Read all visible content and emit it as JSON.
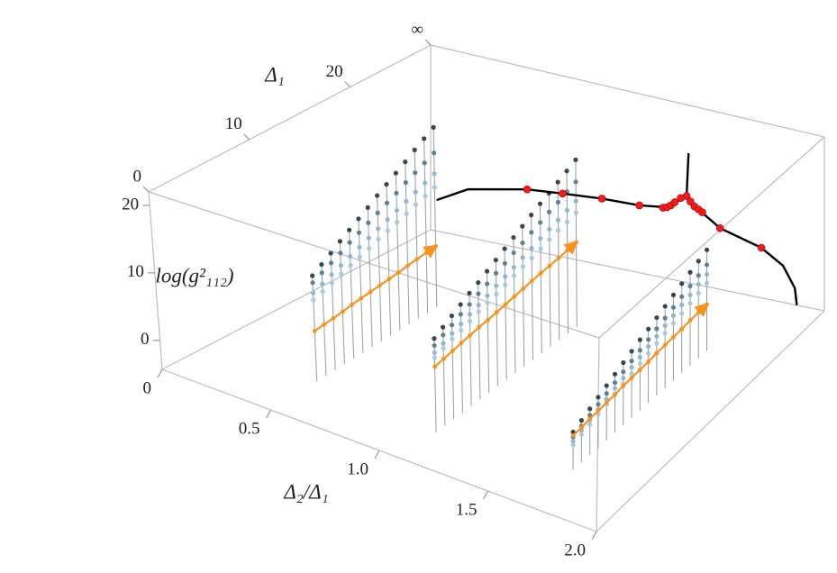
{
  "chart_data": {
    "type": "scatter3d",
    "xlabel": "Δ₂/Δ₁",
    "ylabel": "Δ₁",
    "zlabel": "log(g²₁₁₂)",
    "xlim": [
      0,
      2
    ],
    "ylim": [
      0,
      28
    ],
    "zlim": [
      -4.3,
      22
    ],
    "xticks": [
      0,
      0.5,
      {
        "value": 1,
        "label": "1.0"
      },
      1.5,
      {
        "value": 2,
        "label": "2.0"
      }
    ],
    "yticks": [
      0,
      10,
      20,
      {
        "value": 28,
        "label": "∞"
      }
    ],
    "zticks": [
      0,
      10,
      20
    ],
    "stem_color": "#9a9a9a",
    "groups": [
      {
        "x": 0.5,
        "delta1": [
          5,
          6,
          7,
          8,
          9,
          10,
          11,
          12,
          13,
          14,
          15,
          16,
          17,
          18
        ],
        "levels": [
          {
            "color": "#37474f",
            "values": [
              11,
              11.8,
              12.6,
              13.5,
              14.3,
              15.1,
              15.9,
              16.8,
              17.6,
              18.4,
              19.2,
              20.1,
              20.9,
              21.7
            ]
          },
          {
            "color": "#5f8196",
            "values": [
              10,
              10.6,
              11.2,
              11.8,
              12.5,
              13.1,
              13.7,
              14.3,
              14.9,
              15.5,
              16.2,
              16.8,
              17.4,
              18
            ]
          },
          {
            "color": "#8fb8d0",
            "values": [
              8.5,
              9,
              9.5,
              10,
              10.5,
              11,
              11.5,
              12,
              12.5,
              13,
              13.5,
              14,
              14.5,
              15
            ]
          },
          {
            "color": "#a9c9de",
            "values": [
              7.5,
              7.9,
              8.3,
              8.8,
              9.2,
              9.6,
              10,
              10.5,
              10.9,
              11.3,
              11.7,
              12.2,
              12.6,
              13
            ]
          }
        ],
        "arrow": {
          "color": "#f7931e",
          "values": [
            3,
            3.1,
            3.2,
            3.3,
            3.5,
            3.6,
            3.7,
            3.8,
            3.9,
            4,
            4.2,
            4.3,
            4.4,
            4.5
          ]
        }
      },
      {
        "x": 1.1,
        "delta1": [
          4,
          5,
          6,
          7,
          8,
          9,
          10,
          11,
          12,
          13,
          14,
          15,
          16,
          17,
          18,
          19,
          20
        ],
        "levels": [
          {
            "color": "#37474f",
            "values": [
              9,
              9.7,
              10.4,
              11.1,
              11.8,
              12.4,
              13.1,
              13.8,
              14.5,
              15.2,
              15.9,
              16.6,
              17.3,
              17.9,
              18.6,
              19.3,
              20
            ]
          },
          {
            "color": "#5f8196",
            "values": [
              8,
              8.6,
              9.1,
              9.7,
              10.2,
              10.8,
              11.3,
              11.9,
              12.4,
              13,
              13.5,
              14.1,
              14.6,
              15.2,
              15.7,
              16.3,
              16.8
            ]
          },
          {
            "color": "#8fb8d0",
            "values": [
              7,
              7.4,
              7.9,
              8.3,
              8.8,
              9.2,
              9.6,
              10.1,
              10.5,
              10.9,
              11.4,
              11.8,
              12.3,
              12.7,
              13.1,
              13.6,
              14
            ]
          },
          {
            "color": "#a9c9de",
            "values": [
              6.3,
              6.7,
              7.1,
              7.4,
              7.8,
              8.2,
              8.6,
              8.9,
              9.3,
              9.7,
              10.1,
              10.4,
              10.8,
              11.2,
              11.6,
              11.9,
              12.3
            ]
          }
        ],
        "arrow": {
          "color": "#f7931e",
          "values": [
            5,
            5.2,
            5.4,
            5.6,
            5.8,
            6,
            6.1,
            6.3,
            6.5,
            6.7,
            6.9,
            7.1,
            7.3,
            7.4,
            7.6,
            7.8,
            8
          ]
        }
      },
      {
        "x": 1.7,
        "delta1": [
          5,
          6,
          7,
          8,
          9,
          10,
          11,
          12,
          13,
          14,
          15,
          16,
          17,
          18,
          19,
          20,
          21
        ],
        "levels": [
          {
            "color": "#37474f",
            "values": [
              1,
              1.6,
              2.2,
              2.8,
              3.4,
              4,
              4.6,
              5.2,
              5.8,
              6.3,
              6.9,
              7.5,
              8.1,
              8.7,
              9.3,
              9.9,
              10.5
            ]
          },
          {
            "color": "#5f8196",
            "values": [
              0.3,
              0.8,
              1.3,
              1.8,
              2.3,
              2.8,
              3.3,
              3.8,
              4.3,
              4.8,
              5.3,
              5.8,
              6.3,
              6.8,
              7.3,
              7.8,
              8.3
            ]
          },
          {
            "color": "#8fb8d0",
            "values": [
              -0.3,
              0.2,
              0.6,
              1.1,
              1.5,
              2,
              2.4,
              2.9,
              3.3,
              3.8,
              4.2,
              4.7,
              5.1,
              5.6,
              6,
              6.5,
              6.9
            ]
          },
          {
            "color": "#a9c9de",
            "values": [
              -0.8,
              -0.4,
              0,
              0.4,
              0.8,
              1.2,
              1.6,
              2,
              2.4,
              2.8,
              3.2,
              3.6,
              4,
              4.4,
              4.8,
              5.2,
              5.6
            ]
          }
        ],
        "arrow": {
          "color": "#f7931e",
          "values": [
            0.5,
            0.6,
            0.8,
            0.9,
            1,
            1.1,
            1.3,
            1.4,
            1.5,
            1.6,
            1.8,
            1.9,
            2,
            2.1,
            2.3,
            2.4,
            2.5
          ]
        }
      }
    ],
    "curve": {
      "color": "#000000",
      "delta1": 28,
      "x": [
        0.03,
        0.19,
        0.49,
        0.67,
        0.87,
        1.06,
        1.2,
        1.3,
        1.36,
        1.47,
        1.68,
        1.79,
        1.85,
        1.86
      ],
      "values": [
        0.1,
        2.6,
        4.4,
        4.9,
        5.4,
        5.6,
        6.2,
        8.5,
        6.9,
        4.8,
        3.2,
        1.2,
        -1.8,
        -4.3
      ]
    },
    "branch": {
      "color": "#000000",
      "delta1": 28,
      "x": [
        1.3,
        1.31
      ],
      "values": [
        8.5,
        14.9
      ]
    },
    "points": {
      "color": "#ee1c1c",
      "delta1": 28,
      "x": [
        0.49,
        0.67,
        0.87,
        1.06,
        1.18,
        1.2,
        1.22,
        1.24,
        1.27,
        1.3,
        1.32,
        1.34,
        1.36,
        1.38,
        1.47,
        1.68
      ],
      "values": [
        4.4,
        4.9,
        5.4,
        5.6,
        6,
        6.2,
        6.6,
        7.2,
        8,
        8.5,
        7.8,
        7.2,
        6.9,
        6.6,
        4.8,
        3.2
      ]
    }
  }
}
